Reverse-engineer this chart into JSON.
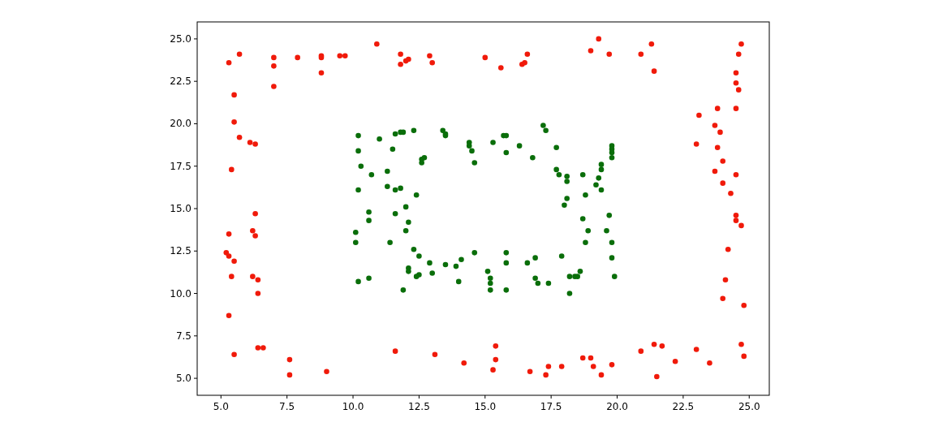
{
  "chart_data": {
    "type": "scatter",
    "marker": "circle",
    "grid": false,
    "xlim": [
      4.1,
      25.76
    ],
    "ylim": [
      4.0,
      26.0
    ],
    "xticks": [
      {
        "value": 5,
        "label": "5.0"
      },
      {
        "value": 7.5,
        "label": "7.5"
      },
      {
        "value": 10,
        "label": "10.0"
      },
      {
        "value": 12.5,
        "label": "12.5"
      },
      {
        "value": 15,
        "label": "15.0"
      },
      {
        "value": 17.5,
        "label": "17.5"
      },
      {
        "value": 20,
        "label": "20.0"
      },
      {
        "value": 22.5,
        "label": "22.5"
      },
      {
        "value": 25,
        "label": "25.0"
      }
    ],
    "yticks": [
      {
        "value": 5,
        "label": "5.0"
      },
      {
        "value": 7.5,
        "label": "7.5"
      },
      {
        "value": 10,
        "label": "10.0"
      },
      {
        "value": 12.5,
        "label": "12.5"
      },
      {
        "value": 15,
        "label": "15.0"
      },
      {
        "value": 17.5,
        "label": "17.5"
      },
      {
        "value": 20,
        "label": "20.0"
      },
      {
        "value": 22.5,
        "label": "22.5"
      },
      {
        "value": 25,
        "label": "25.0"
      }
    ],
    "series": [
      {
        "color": "#f01a0a",
        "x": [
          5.3,
          5.7,
          7.0,
          7.0,
          7.0,
          7.9,
          8.8,
          8.8,
          8.8,
          9.5,
          9.7,
          10.9,
          11.8,
          11.8,
          12.0,
          12.1,
          12.9,
          13.0,
          15.0,
          15.6,
          16.4,
          16.5,
          16.6,
          19.0,
          19.3,
          19.7,
          20.9,
          21.3,
          21.4,
          24.7,
          24.6,
          24.5,
          24.6,
          24.5,
          24.5,
          5.5,
          5.5,
          5.7,
          6.1,
          6.3,
          5.4,
          23.1,
          23.8,
          23.7,
          23.8,
          23.9,
          23.0,
          24.0,
          23.7,
          24.0,
          24.3,
          24.5,
          24.5,
          24.5,
          24.7,
          24.2,
          5.3,
          5.2,
          5.3,
          5.4,
          5.5,
          6.3,
          6.2,
          6.3,
          6.2,
          6.4,
          6.4,
          24.1,
          24.0,
          24.8,
          5.3,
          5.5,
          6.4,
          6.6,
          7.6,
          7.6,
          9.0,
          11.6,
          13.1,
          14.2,
          15.4,
          15.4,
          15.3,
          16.7,
          17.3,
          17.4,
          17.9,
          18.7,
          19.0,
          19.1,
          19.4,
          19.8,
          20.9,
          21.4,
          21.7,
          21.5,
          22.2,
          23.0,
          23.5,
          24.7,
          24.8
        ],
        "values": [
          23.6,
          24.1,
          23.9,
          23.4,
          22.2,
          23.9,
          24.0,
          23.9,
          23.0,
          24.0,
          24.0,
          24.7,
          24.1,
          23.5,
          23.7,
          23.8,
          24.0,
          23.6,
          23.9,
          23.3,
          23.5,
          23.6,
          24.1,
          24.3,
          25.0,
          24.1,
          24.1,
          24.7,
          23.1,
          24.7,
          24.1,
          23.0,
          22.0,
          22.4,
          20.9,
          21.7,
          20.1,
          19.2,
          18.9,
          18.8,
          17.3,
          20.5,
          20.9,
          19.9,
          18.6,
          19.5,
          18.8,
          17.8,
          17.2,
          16.5,
          15.9,
          17.0,
          14.6,
          14.3,
          14.0,
          12.6,
          13.5,
          12.4,
          12.2,
          11.0,
          11.9,
          14.7,
          13.7,
          13.4,
          11.0,
          10.8,
          10.0,
          10.8,
          9.7,
          9.3,
          8.7,
          6.4,
          6.8,
          6.8,
          6.1,
          5.2,
          5.4,
          6.6,
          6.4,
          5.9,
          6.9,
          6.1,
          5.5,
          5.4,
          5.2,
          5.7,
          5.7,
          6.2,
          6.2,
          5.7,
          5.2,
          5.8,
          6.6,
          7.0,
          6.9,
          5.1,
          6.0,
          6.7,
          5.9,
          7.0,
          6.3
        ]
      },
      {
        "color": "#0a6e0a",
        "x": [
          10.2,
          10.2,
          10.3,
          10.2,
          10.1,
          10.1,
          10.2,
          10.6,
          10.7,
          10.6,
          10.6,
          11.0,
          11.3,
          11.3,
          11.4,
          11.5,
          11.6,
          11.6,
          11.8,
          11.6,
          11.8,
          11.9,
          12.3,
          12.0,
          12.0,
          12.1,
          12.3,
          12.5,
          12.4,
          12.6,
          12.6,
          12.7,
          12.1,
          12.1,
          12.5,
          12.9,
          13.0,
          11.9,
          12.4,
          13.4,
          13.5,
          13.5,
          13.5,
          13.9,
          14.1,
          14.0,
          14.4,
          14.4,
          14.5,
          14.6,
          14.6,
          15.1,
          15.2,
          15.2,
          15.2,
          15.3,
          15.7,
          15.8,
          15.8,
          15.8,
          15.8,
          15.8,
          16.3,
          16.6,
          16.8,
          16.9,
          16.9,
          17.0,
          17.2,
          17.3,
          17.4,
          17.7,
          17.7,
          17.8,
          17.9,
          18.1,
          18.1,
          18.0,
          18.1,
          18.2,
          18.4,
          18.2,
          18.7,
          18.8,
          18.7,
          18.8,
          19.2,
          19.3,
          19.4,
          19.4,
          19.4,
          19.7,
          19.6,
          19.8,
          19.8,
          19.8,
          19.8,
          19.8,
          19.8,
          19.9,
          18.9,
          18.6,
          18.5
        ],
        "values": [
          19.3,
          18.4,
          17.5,
          16.1,
          13.6,
          13.0,
          10.7,
          10.9,
          17.0,
          14.8,
          14.3,
          19.1,
          16.3,
          17.2,
          13.0,
          18.5,
          19.4,
          14.7,
          16.2,
          16.1,
          19.5,
          19.5,
          19.6,
          15.1,
          13.7,
          14.2,
          12.6,
          12.2,
          15.8,
          17.7,
          17.9,
          18.0,
          11.5,
          11.3,
          11.1,
          11.8,
          11.2,
          10.2,
          11.0,
          19.6,
          19.3,
          19.4,
          11.7,
          11.6,
          12.0,
          10.7,
          18.9,
          18.7,
          18.4,
          17.7,
          12.4,
          11.3,
          10.9,
          10.6,
          10.2,
          18.9,
          19.3,
          19.3,
          18.3,
          12.4,
          11.8,
          10.2,
          18.7,
          11.8,
          18.0,
          12.1,
          10.9,
          10.6,
          19.9,
          19.6,
          10.6,
          17.3,
          18.6,
          17.0,
          12.2,
          16.6,
          16.9,
          15.2,
          15.6,
          11.0,
          11.0,
          10.0,
          17.0,
          15.8,
          14.4,
          13.0,
          16.4,
          16.8,
          17.3,
          17.6,
          16.1,
          14.6,
          13.7,
          18.7,
          18.5,
          18.3,
          18.0,
          13.0,
          12.1,
          11.0,
          13.7,
          11.3,
          11.0
        ]
      }
    ]
  }
}
